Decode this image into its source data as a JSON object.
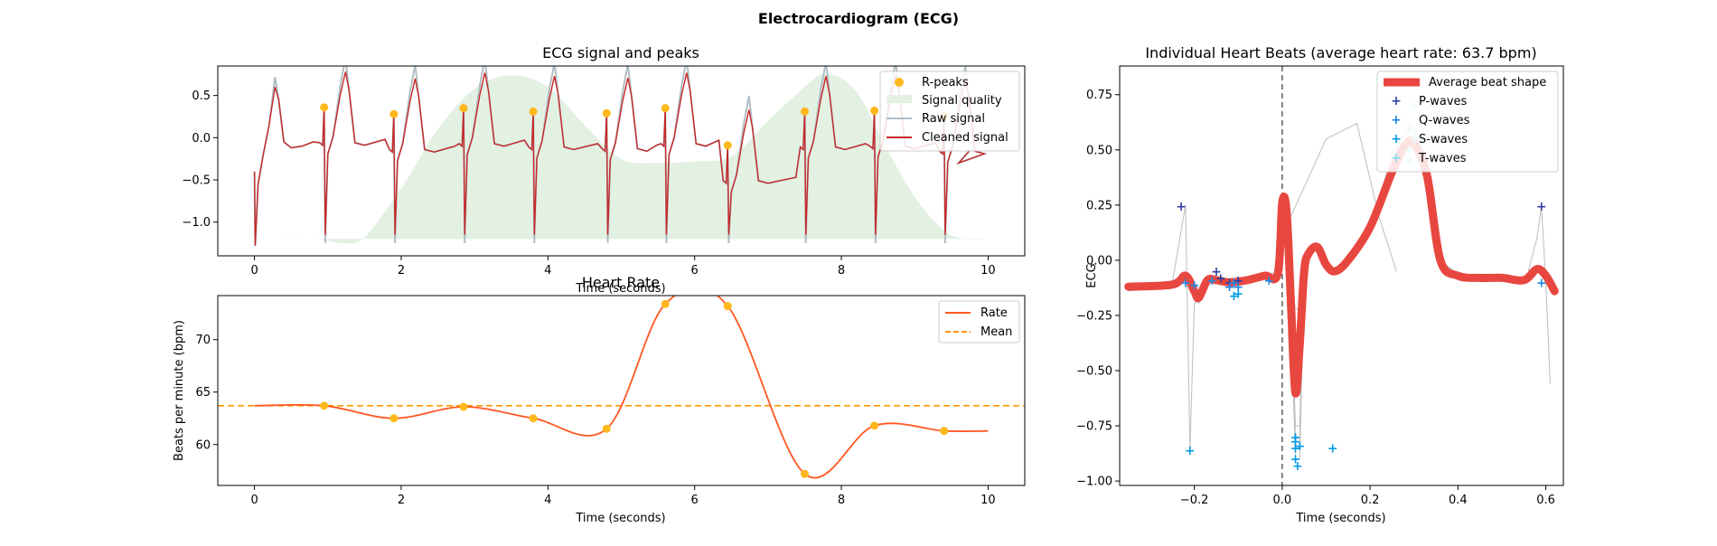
{
  "figure": {
    "title": "Electrocardiogram (ECG)"
  },
  "chart_data": [
    {
      "id": "ecg",
      "type": "line",
      "title": "ECG signal and peaks",
      "xlabel": "Time (seconds)",
      "ylabel": "",
      "xlim": [
        -0.5,
        10.5
      ],
      "ylim": [
        -1.4,
        0.85
      ],
      "xticks": [
        0,
        2,
        4,
        6,
        8,
        10
      ],
      "yticks": [
        -1.0,
        -0.5,
        0.0,
        0.5
      ],
      "ytick_labels": [
        "−1.0",
        "−0.5",
        "0.0",
        "0.5"
      ],
      "legend": [
        "R-peaks",
        "Signal quality",
        "Raw signal",
        "Cleaned signal"
      ],
      "legend_position": "top-right",
      "colors": {
        "rpeak": "#FFB81C",
        "quality": "#E3F1E3",
        "raw": "#B0BEC5",
        "clean": "#C62828"
      },
      "r_peaks": {
        "x": [
          0.95,
          1.9,
          2.85,
          3.8,
          4.8,
          5.6,
          6.45,
          7.5,
          8.45,
          9.4
        ],
        "y": [
          0.36,
          0.28,
          0.35,
          0.31,
          0.29,
          0.35,
          -0.09,
          0.31,
          0.32,
          0.26
        ]
      },
      "quality": {
        "x": [
          0,
          0.8,
          1.2,
          1.5,
          2.0,
          2.5,
          3.0,
          3.5,
          4.0,
          4.5,
          5.0,
          5.5,
          6.0,
          6.5,
          7.0,
          7.5,
          7.8,
          8.2,
          8.6,
          9.0,
          9.4,
          9.7,
          10.0
        ],
        "y": [
          -1.2,
          -1.2,
          -1.25,
          -1.18,
          -0.6,
          0.1,
          0.58,
          0.74,
          0.6,
          0.15,
          -0.25,
          -0.3,
          -0.28,
          -0.22,
          0.2,
          0.6,
          0.76,
          0.55,
          -0.1,
          -0.7,
          -1.1,
          -1.2,
          -1.2
        ],
        "baseline": -1.2
      }
    },
    {
      "id": "rate",
      "type": "line",
      "title": "Heart Rate",
      "xlabel": "Time (seconds)",
      "ylabel": "Beats per minute (bpm)",
      "xlim": [
        -0.5,
        10.5
      ],
      "ylim": [
        56.1,
        74.2
      ],
      "xticks": [
        0,
        2,
        4,
        6,
        8,
        10
      ],
      "yticks": [
        60,
        65,
        70
      ],
      "legend": [
        "Rate",
        "Mean"
      ],
      "legend_position": "top-right",
      "mean": 63.7,
      "colors": {
        "rate": "#FF5722",
        "mean": "#FF9800",
        "peak": "#FFB81C"
      },
      "x": [
        0,
        0.95,
        1.9,
        2.85,
        3.8,
        4.8,
        5.6,
        6.45,
        7.5,
        8.45,
        9.4,
        10
      ],
      "values": [
        63.7,
        63.7,
        62.5,
        63.6,
        62.5,
        61.5,
        73.4,
        73.2,
        57.2,
        61.8,
        61.3,
        61.3
      ],
      "peaks_x": [
        0.95,
        1.9,
        2.85,
        3.8,
        4.8,
        5.6,
        6.45,
        7.5,
        8.45,
        9.4
      ],
      "peaks_y": [
        63.7,
        62.5,
        63.6,
        62.5,
        61.5,
        73.4,
        73.2,
        57.2,
        61.8,
        61.3
      ]
    },
    {
      "id": "beats",
      "type": "line",
      "title": "Individual Heart Beats (average heart rate: 63.7 bpm)",
      "xlabel": "Time (seconds)",
      "ylabel": "ECG",
      "xlim": [
        -0.37,
        0.64
      ],
      "ylim": [
        -1.02,
        0.88
      ],
      "xticks": [
        -0.2,
        0.0,
        0.2,
        0.4,
        0.6
      ],
      "xtick_labels": [
        "−0.2",
        "0.0",
        "0.2",
        "0.4",
        "0.6"
      ],
      "yticks": [
        -1.0,
        -0.75,
        -0.5,
        -0.25,
        0.0,
        0.25,
        0.5,
        0.75
      ],
      "ytick_labels": [
        "−1.00",
        "−0.75",
        "−0.50",
        "−0.25",
        "0.00",
        "0.25",
        "0.50",
        "0.75"
      ],
      "legend": [
        "Average beat shape",
        "P-waves",
        "Q-waves",
        "S-waves",
        "T-waves"
      ],
      "legend_position": "top-right",
      "colors": {
        "average": "#E8473F",
        "p": "#303F9F",
        "q": "#1E88E5",
        "s": "#039BE5",
        "t": "#80DEEA",
        "beats": "#BDBDBD"
      },
      "average": {
        "x": [
          -0.35,
          -0.25,
          -0.22,
          -0.2,
          -0.19,
          -0.17,
          -0.15,
          -0.12,
          -0.08,
          -0.04,
          -0.01,
          0.0,
          0.01,
          0.02,
          0.03,
          0.04,
          0.05,
          0.06,
          0.08,
          0.1,
          0.12,
          0.15,
          0.2,
          0.25,
          0.28,
          0.3,
          0.33,
          0.36,
          0.4,
          0.45,
          0.5,
          0.55,
          0.58,
          0.6,
          0.62
        ],
        "y": [
          -0.12,
          -0.11,
          -0.07,
          -0.14,
          -0.17,
          -0.09,
          -0.09,
          -0.1,
          -0.09,
          -0.07,
          -0.06,
          0.26,
          0.22,
          -0.2,
          -0.6,
          -0.38,
          -0.05,
          0.03,
          0.06,
          -0.02,
          -0.05,
          0.0,
          0.15,
          0.4,
          0.52,
          0.53,
          0.38,
          0.0,
          -0.07,
          -0.08,
          -0.08,
          -0.09,
          -0.04,
          -0.07,
          -0.14
        ]
      },
      "p_waves": {
        "x": [
          -0.23,
          -0.15,
          -0.14,
          -0.12,
          -0.1,
          0.59
        ],
        "y": [
          0.245,
          -0.05,
          -0.08,
          -0.1,
          -0.09,
          0.245
        ]
      },
      "q_waves": {
        "x": [
          -0.22,
          -0.2,
          -0.16,
          -0.12,
          -0.1,
          -0.11,
          -0.03,
          0.59
        ],
        "y": [
          -0.1,
          -0.11,
          -0.09,
          -0.12,
          -0.12,
          -0.1,
          -0.09,
          -0.1
        ]
      },
      "s_waves": {
        "x": [
          -0.21,
          -0.1,
          -0.11,
          0.03,
          0.03,
          0.04,
          0.03,
          0.035,
          0.03,
          0.115
        ],
        "y": [
          -0.86,
          -0.15,
          -0.16,
          -0.8,
          -0.85,
          -0.84,
          -0.9,
          -0.93,
          -0.82,
          -0.85
        ]
      },
      "t_waves": {
        "x": [
          0.29,
          0.3,
          0.29,
          0.3,
          0.29
        ],
        "y": [
          0.5,
          0.55,
          0.6,
          0.7,
          0.45
        ]
      }
    }
  ]
}
